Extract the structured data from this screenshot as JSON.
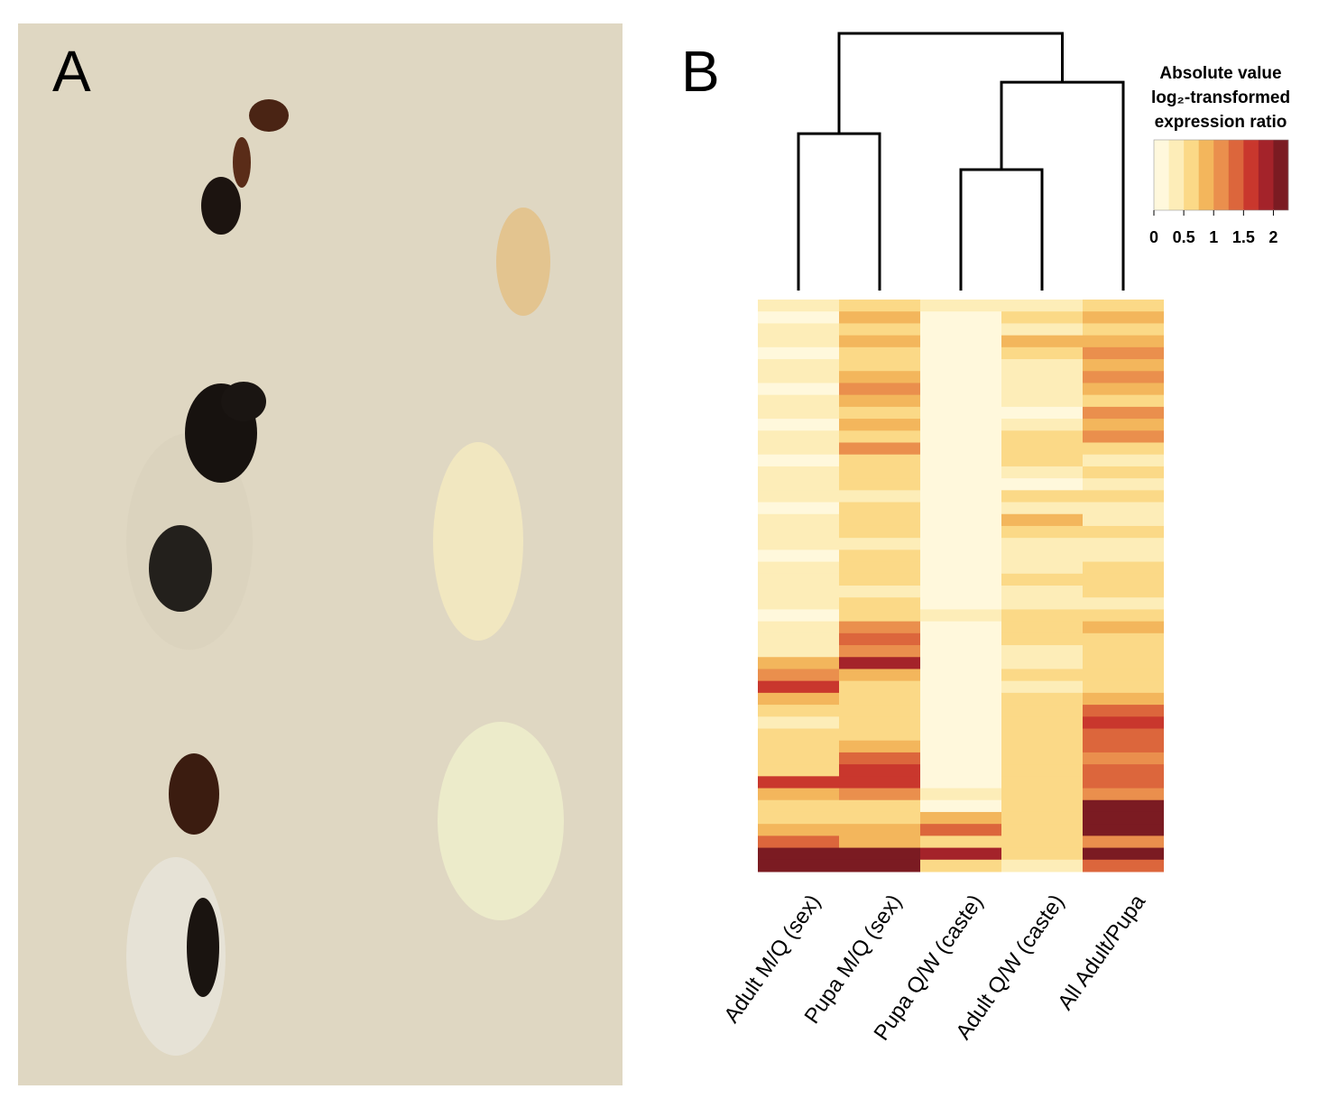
{
  "panels": {
    "a": {
      "label": "A"
    },
    "b": {
      "label": "B"
    }
  },
  "chart_data": {
    "type": "heatmap",
    "categories": [
      "Adult M/Q (sex)",
      "Pupa M/Q (sex)",
      "Pupa Q/W (caste)",
      "Adult Q/W (caste)",
      "All Adult/Pupa"
    ],
    "values": [
      [
        0.3,
        0.2,
        0.3,
        0.4,
        0.2,
        0.3,
        0.3,
        0.2,
        0.4,
        0.3,
        0.2,
        0.3,
        0.4,
        0.2,
        0.3,
        0.3,
        0.4,
        0.2,
        0.3,
        0.4,
        0.3,
        0.2,
        0.3,
        0.4,
        0.3,
        0.3,
        0.2,
        0.3,
        0.4,
        0.3,
        0.9,
        1.1,
        1.6,
        0.8,
        0.5,
        0.4,
        0.6,
        0.5,
        0.6,
        0.7,
        1.6,
        0.8,
        0.6,
        0.7,
        0.8,
        1.3,
        2.2,
        2.2
      ],
      [
        0.7,
        0.9,
        0.6,
        0.9,
        0.5,
        0.6,
        0.8,
        1.0,
        0.8,
        0.7,
        0.9,
        0.6,
        1.0,
        0.7,
        0.6,
        0.5,
        0.4,
        0.6,
        0.5,
        0.5,
        0.4,
        0.6,
        0.5,
        0.5,
        0.4,
        0.5,
        0.6,
        1.1,
        1.3,
        1.2,
        1.8,
        0.8,
        0.6,
        0.5,
        0.7,
        0.6,
        0.5,
        0.8,
        1.3,
        1.5,
        1.7,
        1.1,
        0.6,
        0.7,
        0.9,
        0.8,
        2.2,
        2.2
      ],
      [
        0.3,
        0.2,
        0.2,
        0.2,
        0.1,
        0.2,
        0.1,
        0.1,
        0.2,
        0.1,
        0.1,
        0.1,
        0.1,
        0.1,
        0.1,
        0.2,
        0.1,
        0.1,
        0.2,
        0.1,
        0.1,
        0.1,
        0.1,
        0.2,
        0.1,
        0.1,
        0.3,
        0.2,
        0.1,
        0.1,
        0.2,
        0.1,
        0.1,
        0.1,
        0.2,
        0.1,
        0.1,
        0.2,
        0.2,
        0.1,
        0.2,
        0.3,
        0.2,
        0.9,
        1.3,
        0.7,
        1.8,
        0.6
      ],
      [
        0.3,
        0.6,
        0.4,
        0.8,
        0.5,
        0.4,
        0.3,
        0.4,
        0.3,
        0.2,
        0.4,
        0.5,
        0.6,
        0.5,
        0.3,
        0.2,
        0.6,
        0.4,
        0.8,
        0.5,
        0.3,
        0.3,
        0.4,
        0.6,
        0.4,
        0.3,
        0.5,
        0.7,
        0.5,
        0.4,
        0.3,
        0.5,
        0.4,
        0.5,
        0.6,
        0.7,
        0.5,
        0.6,
        0.5,
        0.6,
        0.7,
        0.5,
        0.6,
        0.7,
        0.6,
        0.5,
        0.6,
        0.4
      ],
      [
        0.6,
        0.8,
        0.7,
        0.9,
        1.0,
        0.8,
        1.0,
        0.9,
        0.7,
        1.0,
        0.8,
        1.1,
        0.6,
        0.4,
        0.5,
        0.4,
        0.5,
        0.3,
        0.4,
        0.5,
        0.4,
        0.4,
        0.5,
        0.6,
        0.5,
        0.4,
        0.6,
        0.8,
        0.5,
        0.6,
        0.7,
        0.6,
        0.5,
        0.8,
        1.3,
        1.6,
        1.4,
        1.3,
        1.1,
        1.4,
        1.3,
        1.0,
        2.2,
        2.2,
        2.0,
        1.2,
        2.2,
        1.4
      ]
    ],
    "dendrogram": {
      "height": 1,
      "children": [
        {
          "height": 0.61,
          "children": [
            0,
            1
          ]
        },
        {
          "height": 0.81,
          "children": [
            {
              "height": 0.47,
              "children": [
                2,
                3
              ]
            },
            4
          ]
        }
      ]
    },
    "legend_title": [
      "Absolute value",
      "log₂-transformed",
      "expression ratio"
    ],
    "zlim": [
      0,
      2.25
    ],
    "zticks": [
      0,
      0.5,
      1,
      1.5,
      2
    ],
    "colors": [
      "#fff8dc",
      "#fdedb8",
      "#fbd987",
      "#f3b65c",
      "#ea8f4d",
      "#dc663c",
      "#c9372d",
      "#a4232a",
      "#7b1b22"
    ]
  }
}
